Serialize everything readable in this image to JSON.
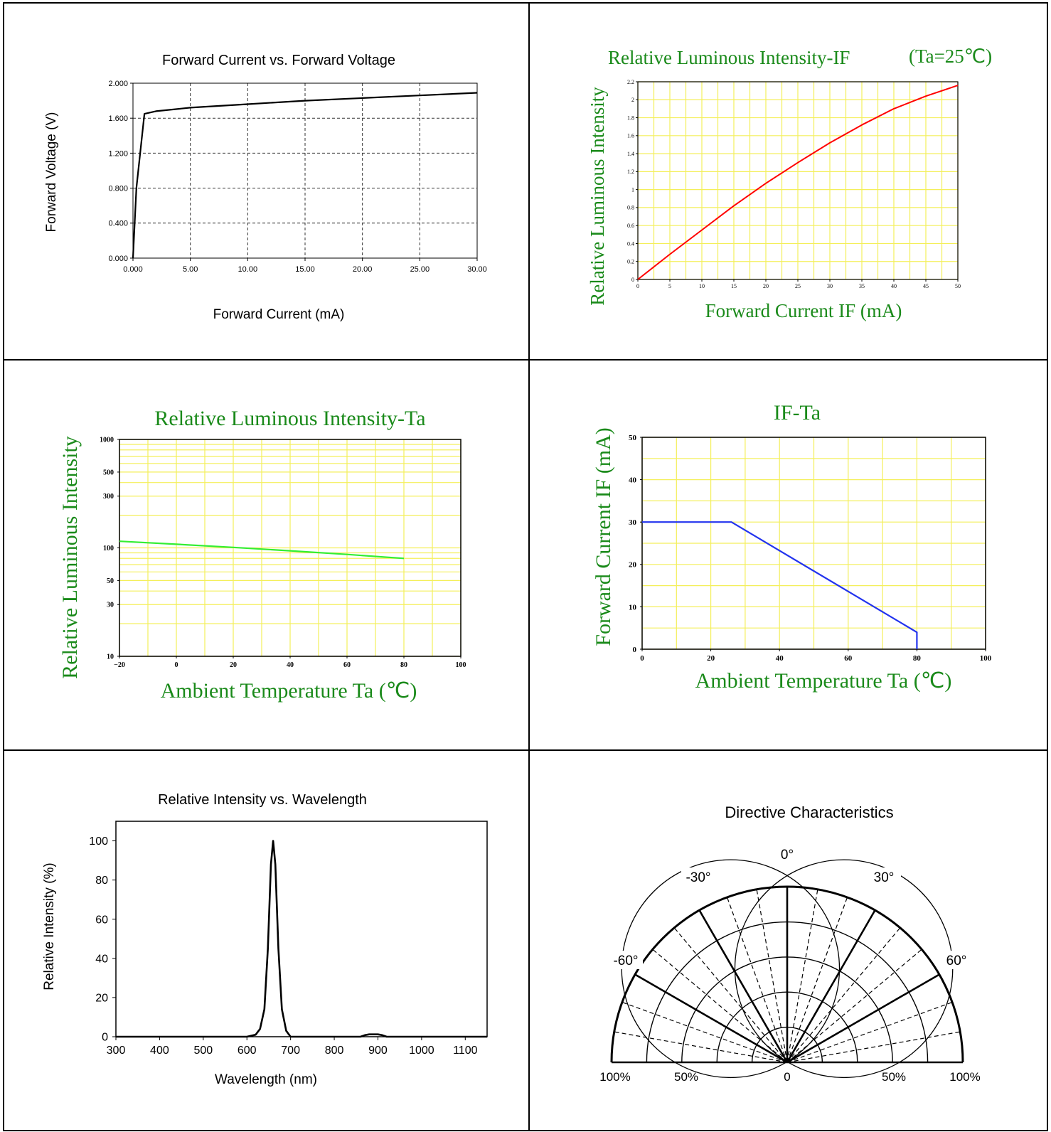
{
  "colors": {
    "black": "#000000",
    "green_text": "#1a8a1a",
    "grid_yellow": "#f4ef5a",
    "red_curve": "#ff0000",
    "green_curve": "#33ee33",
    "blue_curve": "#2233ee"
  },
  "chart_data": [
    {
      "type": "line",
      "title": "Forward Current vs. Forward Voltage",
      "xlabel": "Forward Current (mA)",
      "ylabel": "Forward Voltage (V)",
      "xlim": [
        0,
        30
      ],
      "ylim": [
        0,
        2
      ],
      "xticks": [
        "0.000",
        "5.00",
        "10.00",
        "15.00",
        "20.00",
        "25.00",
        "30.00"
      ],
      "yticks": [
        "0.000",
        "0.400",
        "0.800",
        "1.200",
        "1.600",
        "2.000"
      ],
      "grid": "dashed",
      "series": [
        {
          "x": [
            0,
            0.3,
            1,
            2,
            5,
            10,
            15,
            20,
            25,
            30
          ],
          "y": [
            0,
            0.8,
            1.65,
            1.68,
            1.72,
            1.76,
            1.8,
            1.83,
            1.86,
            1.89
          ]
        }
      ]
    },
    {
      "type": "line",
      "title": "Relative Luminous Intensity-IF",
      "title_note": "(Ta=25℃)",
      "xlabel": "Forward Current IF (mA)",
      "ylabel": "Relative Luminous Intensity",
      "xlim": [
        0,
        50
      ],
      "ylim": [
        0,
        2.2
      ],
      "xticks": [
        "0",
        "5",
        "10",
        "15",
        "20",
        "25",
        "30",
        "35",
        "40",
        "45",
        "50"
      ],
      "yticks": [
        "0",
        "0.2",
        "0.4",
        "0.6",
        "0.8",
        "1",
        "1.2",
        "1.4",
        "1.6",
        "1.8",
        "2",
        "2.2"
      ],
      "grid": "on",
      "series": [
        {
          "x": [
            0,
            5,
            10,
            15,
            20,
            25,
            30,
            35,
            40,
            45,
            50
          ],
          "y": [
            0,
            0.28,
            0.55,
            0.82,
            1.07,
            1.3,
            1.52,
            1.72,
            1.9,
            2.04,
            2.16
          ]
        }
      ]
    },
    {
      "type": "line",
      "title": "Relative Luminous Intensity-Ta",
      "xlabel": "Ambient Temperature Ta (℃)",
      "ylabel": "Relative Luminous Intensity",
      "xlim": [
        -20,
        100
      ],
      "ylim": [
        10,
        1000
      ],
      "yscale": "log",
      "xticks": [
        "−20",
        "0",
        "20",
        "40",
        "60",
        "80",
        "100"
      ],
      "yticks": [
        "10",
        "30",
        "50",
        "100",
        "300",
        "500",
        "1000"
      ],
      "grid": "on",
      "series": [
        {
          "x": [
            -20,
            0,
            20,
            40,
            60,
            80
          ],
          "y": [
            115,
            108,
            101,
            94,
            87,
            80
          ]
        }
      ]
    },
    {
      "type": "line",
      "title": "IF-Ta",
      "xlabel": "Ambient Temperature Ta (℃)",
      "ylabel": "Forward Current IF (mA)",
      "xlim": [
        0,
        100
      ],
      "ylim": [
        0,
        50
      ],
      "xticks": [
        "0",
        "20",
        "40",
        "60",
        "80",
        "100"
      ],
      "yticks": [
        "0",
        "10",
        "20",
        "30",
        "40",
        "50"
      ],
      "grid": "on",
      "series": [
        {
          "x": [
            0,
            26,
            80,
            80
          ],
          "y": [
            30,
            30,
            4,
            0
          ]
        }
      ]
    },
    {
      "type": "line",
      "title": "Relative Intensity vs. Wavelength",
      "xlabel": "Wavelength (nm)",
      "ylabel": "Relative Intensity (%)",
      "xlim": [
        300,
        1150
      ],
      "ylim": [
        0,
        110
      ],
      "xticks": [
        "300",
        "400",
        "500",
        "600",
        "700",
        "800",
        "900",
        "1000",
        "1100"
      ],
      "yticks": [
        "0",
        "20",
        "40",
        "60",
        "80",
        "100"
      ],
      "grid": "off",
      "series": [
        {
          "x": [
            300,
            600,
            620,
            630,
            640,
            648,
            655,
            660,
            665,
            672,
            680,
            690,
            700,
            860,
            870,
            880,
            900,
            910,
            920,
            1150
          ],
          "y": [
            0,
            0,
            1,
            4,
            14,
            45,
            88,
            100,
            88,
            45,
            14,
            3,
            0,
            0,
            0.8,
            1.2,
            1.2,
            0.8,
            0,
            0
          ]
        }
      ]
    },
    {
      "type": "polar",
      "title": "Directive Characteristics",
      "angle_labels": [
        "-60°",
        "-30°",
        "0°",
        "30°",
        "60°"
      ],
      "radial_labels": [
        "100%",
        "50%",
        "0",
        "50%",
        "100%"
      ],
      "pattern_note": "radiation lobes"
    }
  ]
}
